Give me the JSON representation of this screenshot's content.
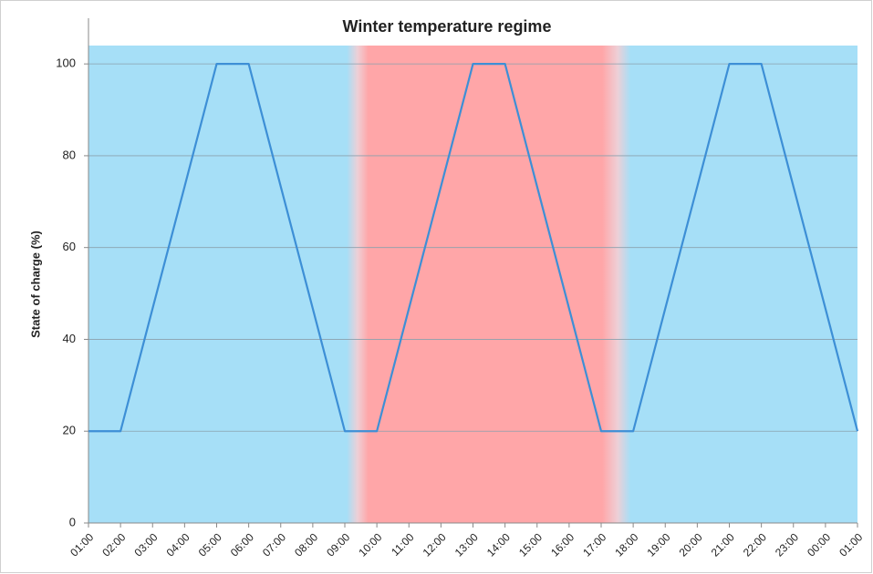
{
  "chart_data": {
    "type": "line",
    "title": "Winter temperature regime",
    "y_label": "State of charge (%)",
    "categories": [
      "01:00",
      "02:00",
      "03:00",
      "04:00",
      "05:00",
      "06:00",
      "07:00",
      "08:00",
      "09:00",
      "10:00",
      "11:00",
      "12:00",
      "13:00",
      "14:00",
      "15:00",
      "16:00",
      "17:00",
      "18:00",
      "19:00",
      "20:00",
      "21:00",
      "22:00",
      "23:00",
      "00:00",
      "01:00"
    ],
    "series": [
      {
        "color": "#3d8fd6",
        "values": [
          20,
          20,
          46.7,
          73.3,
          100,
          100,
          73.3,
          46.7,
          20,
          20,
          46.7,
          73.3,
          100,
          100,
          73.3,
          46.7,
          20,
          20,
          46.7,
          73.3,
          100,
          100,
          73.3,
          46.7,
          20
        ]
      }
    ],
    "ylim": [
      0,
      104
    ],
    "yticks": [
      0,
      20,
      40,
      60,
      80,
      100
    ],
    "grid": true
  }
}
